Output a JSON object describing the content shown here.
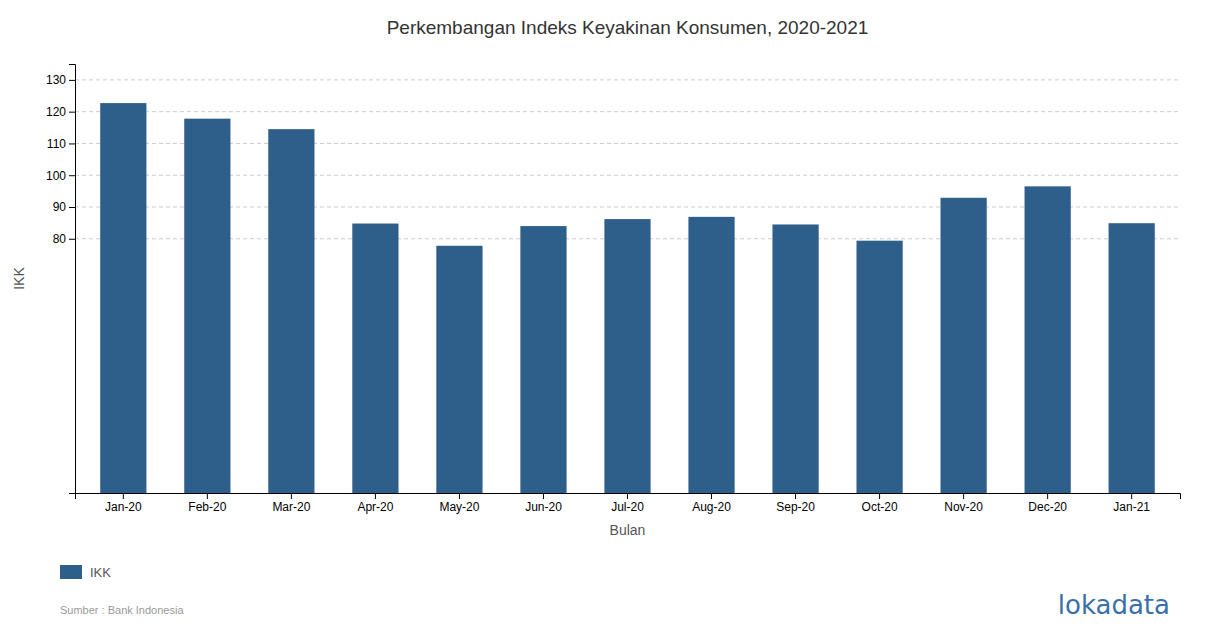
{
  "chart_data": {
    "type": "bar",
    "title": "Perkembangan Indeks Keyakinan Konsumen, 2020-2021",
    "xlabel": "Bulan",
    "ylabel": "IKK",
    "categories": [
      "Jan-20",
      "Feb-20",
      "Mar-20",
      "Apr-20",
      "May-20",
      "Jun-20",
      "Jul-20",
      "Aug-20",
      "Sep-20",
      "Oct-20",
      "Nov-20",
      "Dec-20",
      "Jan-21"
    ],
    "series": [
      {
        "name": "IKK",
        "color": "#2d5f8a",
        "values": [
          122.7,
          117.8,
          114.5,
          84.8,
          77.8,
          84.0,
          86.2,
          86.9,
          84.5,
          79.4,
          92.9,
          96.5,
          84.9
        ]
      }
    ],
    "ylim": [
      0,
      135
    ],
    "yticks": [
      80,
      90,
      100,
      110,
      120,
      130
    ],
    "grid": true,
    "legend": "bottom",
    "annotations": [
      "Sumber : Bank Indonesia",
      "lokadata"
    ]
  }
}
